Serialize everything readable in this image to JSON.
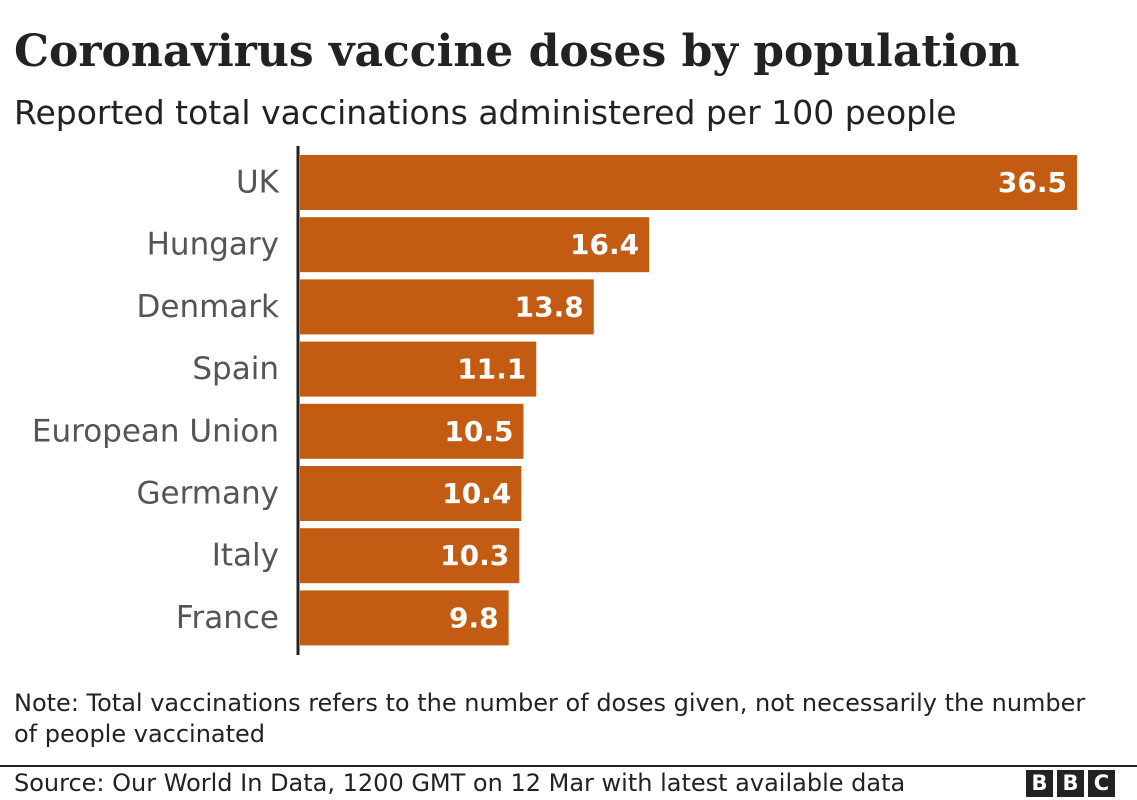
{
  "title": "Coronavirus vaccine doses by population",
  "subtitle": "Reported total vaccinations administered per 100 people",
  "note": "Note: Total vaccinations refers to the number of doses given, not necessarily the number of people vaccinated",
  "source": "Source: Our World In Data, 1200 GMT on 12 Mar with latest available data",
  "logo": {
    "letters": [
      "B",
      "B",
      "C"
    ]
  },
  "colors": {
    "bar": "#c45b12",
    "axis": "#222222",
    "label": "#555555",
    "value_text": "#ffffff"
  },
  "chart_data": {
    "type": "bar",
    "orientation": "horizontal",
    "title": "Coronavirus vaccine doses by population",
    "subtitle": "Reported total vaccinations administered per 100 people",
    "categories": [
      "UK",
      "Hungary",
      "Denmark",
      "Spain",
      "European Union",
      "Germany",
      "Italy",
      "France"
    ],
    "values": [
      36.5,
      16.4,
      13.8,
      11.1,
      10.5,
      10.4,
      10.3,
      9.8
    ],
    "value_labels": [
      "36.5",
      "16.4",
      "13.8",
      "11.1",
      "10.5",
      "10.4",
      "10.3",
      "9.8"
    ],
    "xlim": [
      0,
      36.5
    ],
    "grid": false,
    "legend": "none"
  }
}
